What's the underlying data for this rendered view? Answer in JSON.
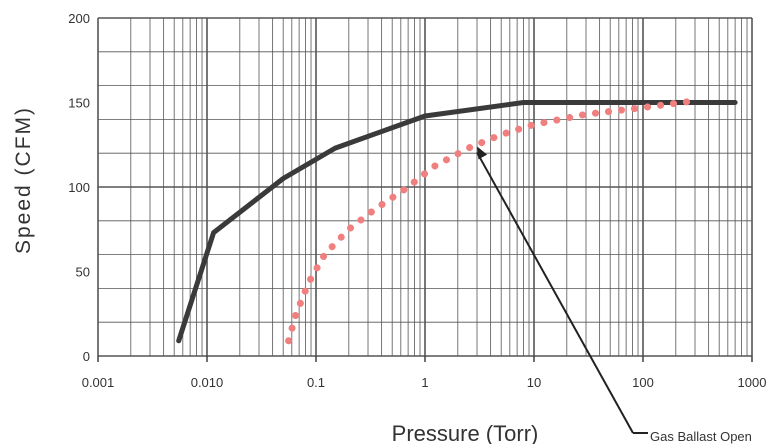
{
  "chart_data": {
    "type": "line",
    "x_scale": "log",
    "xlim": [
      0.001,
      1000
    ],
    "ylim": [
      0,
      200
    ],
    "xlabel": "Pressure  (Torr)",
    "ylabel": "Speed  (CFM)",
    "x_ticks": [
      {
        "value": 0.001,
        "label": "0.001"
      },
      {
        "value": 0.01,
        "label": "0.010"
      },
      {
        "value": 0.1,
        "label": "0.1"
      },
      {
        "value": 1,
        "label": "1"
      },
      {
        "value": 10,
        "label": "10"
      },
      {
        "value": 100,
        "label": "100"
      },
      {
        "value": 1000,
        "label": "1000"
      }
    ],
    "y_ticks": [
      0,
      50,
      100,
      150,
      200
    ],
    "grid": true,
    "series": [
      {
        "style": "solid",
        "color": "#3a3a3a",
        "points": [
          [
            0.0055,
            9
          ],
          [
            0.0115,
            73
          ],
          [
            0.05,
            105
          ],
          [
            0.15,
            123
          ],
          [
            1,
            142
          ],
          [
            8,
            150
          ],
          [
            700,
            150
          ]
        ]
      },
      {
        "style": "dotted",
        "color": "#f08080",
        "points": [
          [
            0.056,
            9
          ],
          [
            0.065,
            24
          ],
          [
            0.085,
            43
          ],
          [
            0.12,
            60
          ],
          [
            0.2,
            75
          ],
          [
            0.35,
            87
          ],
          [
            0.7,
            100
          ],
          [
            1.2,
            112
          ],
          [
            2.5,
            123
          ],
          [
            5,
            131
          ],
          [
            10,
            137
          ],
          [
            30,
            143
          ],
          [
            100,
            147
          ],
          [
            300,
            151
          ]
        ]
      }
    ],
    "annotation": {
      "text": "Gas Ballast Open",
      "target": [
        3,
        124
      ]
    }
  }
}
